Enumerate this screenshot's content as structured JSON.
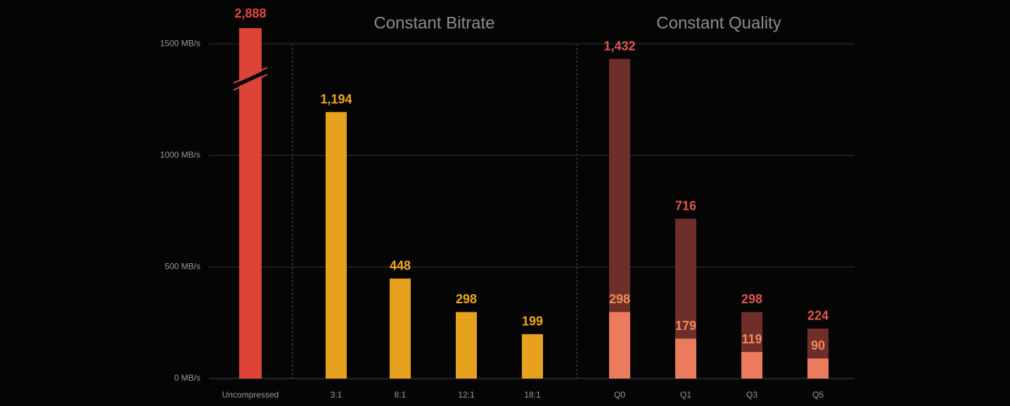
{
  "chart_data": {
    "type": "bar",
    "categories": [
      "Uncompressed",
      "3:1",
      "8:1",
      "12:1",
      "18:1",
      "Q0",
      "Q1",
      "Q3",
      "Q5"
    ],
    "groups": [
      {
        "label": "Constant Bitrate",
        "from": 1,
        "to": 4
      },
      {
        "label": "Constant Quality",
        "from": 5,
        "to": 8
      }
    ],
    "series": [
      {
        "values": [
          2888,
          1194,
          448,
          298,
          199,
          1432,
          716,
          298,
          224
        ],
        "value_labels": [
          "2,888",
          "1,194",
          "448",
          "298",
          "199",
          "1,432",
          "716",
          "298",
          "224"
        ],
        "colors": [
          "#de4338",
          "#e6a21e",
          "#e6a21e",
          "#e6a21e",
          "#e6a21e",
          "#6e2e2a",
          "#6e2e2a",
          "#6e2e2a",
          "#6e2e2a"
        ],
        "label_colors": [
          "#e8453c",
          "#f0a81c",
          "#f0a81c",
          "#f0a81c",
          "#f0a81c",
          "#e2564a",
          "#e2564a",
          "#e2564a",
          "#e2564a"
        ]
      },
      {
        "values": [
          null,
          null,
          null,
          null,
          null,
          298,
          179,
          119,
          90
        ],
        "value_labels": [
          null,
          null,
          null,
          null,
          null,
          "298",
          "179",
          "119",
          "90"
        ],
        "color": "#ec7a5c",
        "label_color": "#f08a5a"
      }
    ],
    "ylim": [
      0,
      1570
    ],
    "yticks": [
      {
        "value": 0,
        "label": "0 MB/s"
      },
      {
        "value": 500,
        "label": "500 MB/s"
      },
      {
        "value": 1000,
        "label": "1000 MB/s"
      },
      {
        "value": 1500,
        "label": "1500 MB/s"
      }
    ],
    "grid": true,
    "axis_break": true
  }
}
